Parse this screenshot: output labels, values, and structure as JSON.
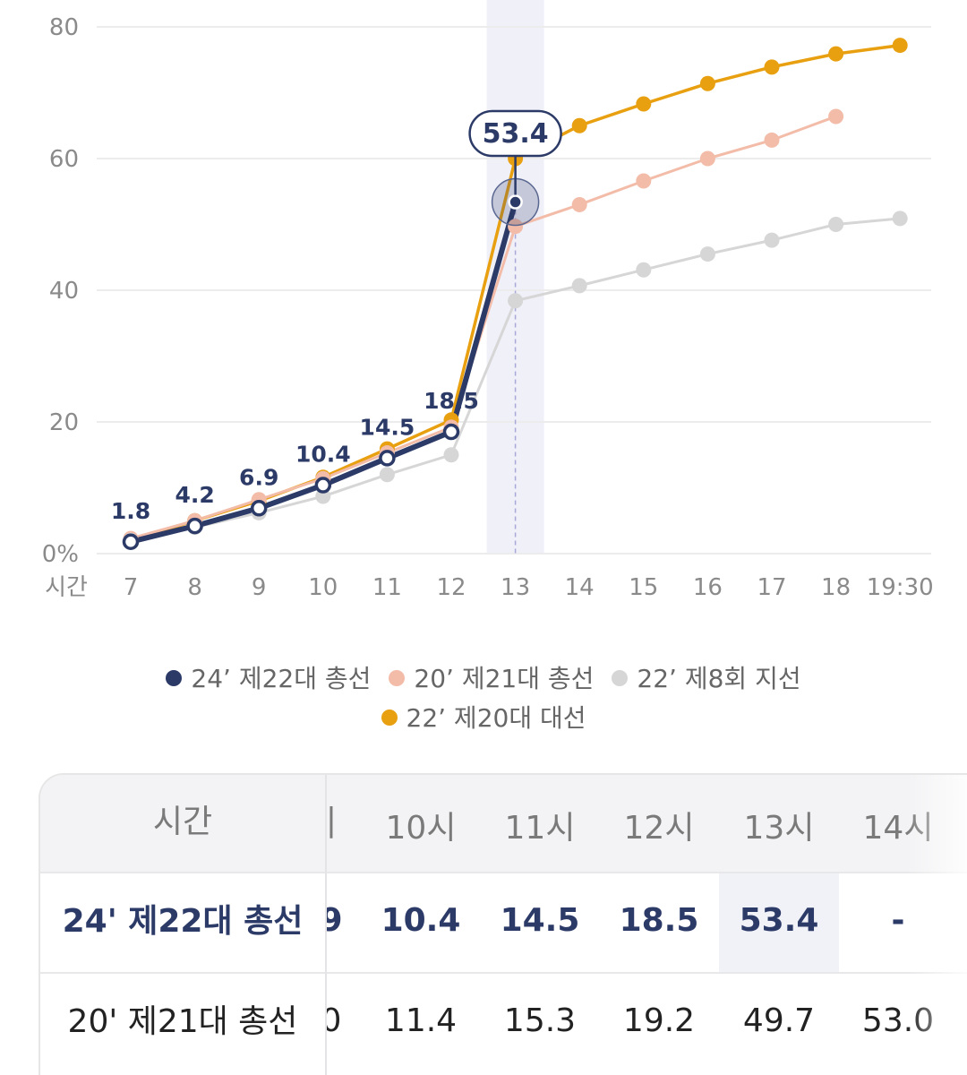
{
  "chart_data": {
    "type": "line",
    "categories": [
      "7",
      "8",
      "9",
      "10",
      "11",
      "12",
      "13",
      "14",
      "15",
      "16",
      "17",
      "18",
      "19:30"
    ],
    "x_axis_title": "시간",
    "ylim": [
      0,
      80
    ],
    "y_ticks": [
      "0%",
      "20",
      "40",
      "60",
      "80"
    ],
    "grid": true,
    "highlight_category": "13",
    "highlight_value_label": "53.4",
    "series": [
      {
        "name": "22’ 제20대 대선",
        "color": "#e8a010",
        "values": [
          2.0,
          5.0,
          8.0,
          11.6,
          15.9,
          20.3,
          60.0,
          65.0,
          68.3,
          71.4,
          73.9,
          75.9,
          77.2
        ]
      },
      {
        "name": "20’ 제21대 총선",
        "color": "#f3bca8",
        "values": [
          2.3,
          5.0,
          8.2,
          11.4,
          15.3,
          19.2,
          49.7,
          53.0,
          56.6,
          60.0,
          62.8,
          66.4,
          null
        ]
      },
      {
        "name": "22’ 제8회 지선",
        "color": "#d6d6d6",
        "values": [
          2.0,
          4.0,
          6.2,
          8.7,
          12.0,
          15.0,
          38.4,
          40.7,
          43.1,
          45.5,
          47.6,
          50.0,
          50.9
        ]
      },
      {
        "name": "24’ 제22대 총선",
        "color": "#2b3a67",
        "values": [
          1.8,
          4.2,
          6.9,
          10.4,
          14.5,
          18.5,
          53.4,
          null,
          null,
          null,
          null,
          null,
          null
        ]
      }
    ],
    "data_labels": [
      "1.8",
      "4.2",
      "6.9",
      "10.4",
      "14.5",
      "18.5"
    ]
  },
  "legend": {
    "row1": [
      {
        "label": "24’ 제22대 총선",
        "color": "#2b3a67"
      },
      {
        "label": "20’ 제21대 총선",
        "color": "#f3bca8"
      },
      {
        "label": "22’ 제8회 지선",
        "color": "#d6d6d6"
      }
    ],
    "row2": [
      {
        "label": "22’ 제20대 대선",
        "color": "#e8a010"
      }
    ]
  },
  "table": {
    "header_label": "시간",
    "columns": [
      "|",
      "10시",
      "11시",
      "12시",
      "13시",
      "14시"
    ],
    "rows": [
      {
        "label": "24' 제22대 총선",
        "values": [
          "9",
          "10.4",
          "14.5",
          "18.5",
          "53.4",
          "-"
        ]
      },
      {
        "label": "20' 제21대 총선",
        "values": [
          "0",
          "11.4",
          "15.3",
          "19.2",
          "49.7",
          "53.0"
        ]
      }
    ]
  }
}
